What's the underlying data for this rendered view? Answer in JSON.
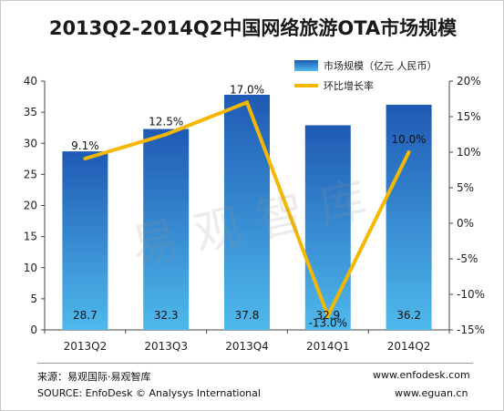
{
  "title": "2013Q2-2014Q2中国网络旅游OTA市场规模",
  "legend": {
    "bar_label": "市场规模（亿元 人民币）",
    "line_label": "环比增长率"
  },
  "watermark": "易观智库",
  "footer": {
    "source_cn": "来源：易观国际·易观智库",
    "source_en": "SOURCE: EnfoDesk © Analysys International",
    "url1": "www.enfodesk.com",
    "url2": "www.eguan.cn"
  },
  "colors": {
    "bar_top": "#1f5ab4",
    "bar_bottom": "#4fb9ec",
    "line": "#f5b800"
  },
  "chart_data": {
    "type": "bar",
    "categories": [
      "2013Q2",
      "2013Q3",
      "2013Q4",
      "2014Q1",
      "2014Q2"
    ],
    "series": [
      {
        "name": "市场规模（亿元 人民币）",
        "type": "bar",
        "axis": "left",
        "values": [
          28.7,
          32.3,
          37.8,
          32.9,
          36.2
        ],
        "labels": [
          "28.7",
          "32.3",
          "37.8",
          "32.9",
          "36.2"
        ]
      },
      {
        "name": "环比增长率",
        "type": "line",
        "axis": "right",
        "values": [
          9.1,
          12.5,
          17.0,
          -13.0,
          10.0
        ],
        "labels": [
          "9.1%",
          "12.5%",
          "17.0%",
          "-13.0%",
          "10.0%"
        ]
      }
    ],
    "ylim_left": [
      0,
      40
    ],
    "yticks_left": [
      "0",
      "5",
      "10",
      "15",
      "20",
      "25",
      "30",
      "35",
      "40"
    ],
    "ylim_right": [
      -15,
      20
    ],
    "yticks_right": [
      "-15%",
      "-10%",
      "-5%",
      "0%",
      "5%",
      "10%",
      "15%",
      "20%"
    ],
    "grid": false,
    "legend_position": "top-right"
  }
}
